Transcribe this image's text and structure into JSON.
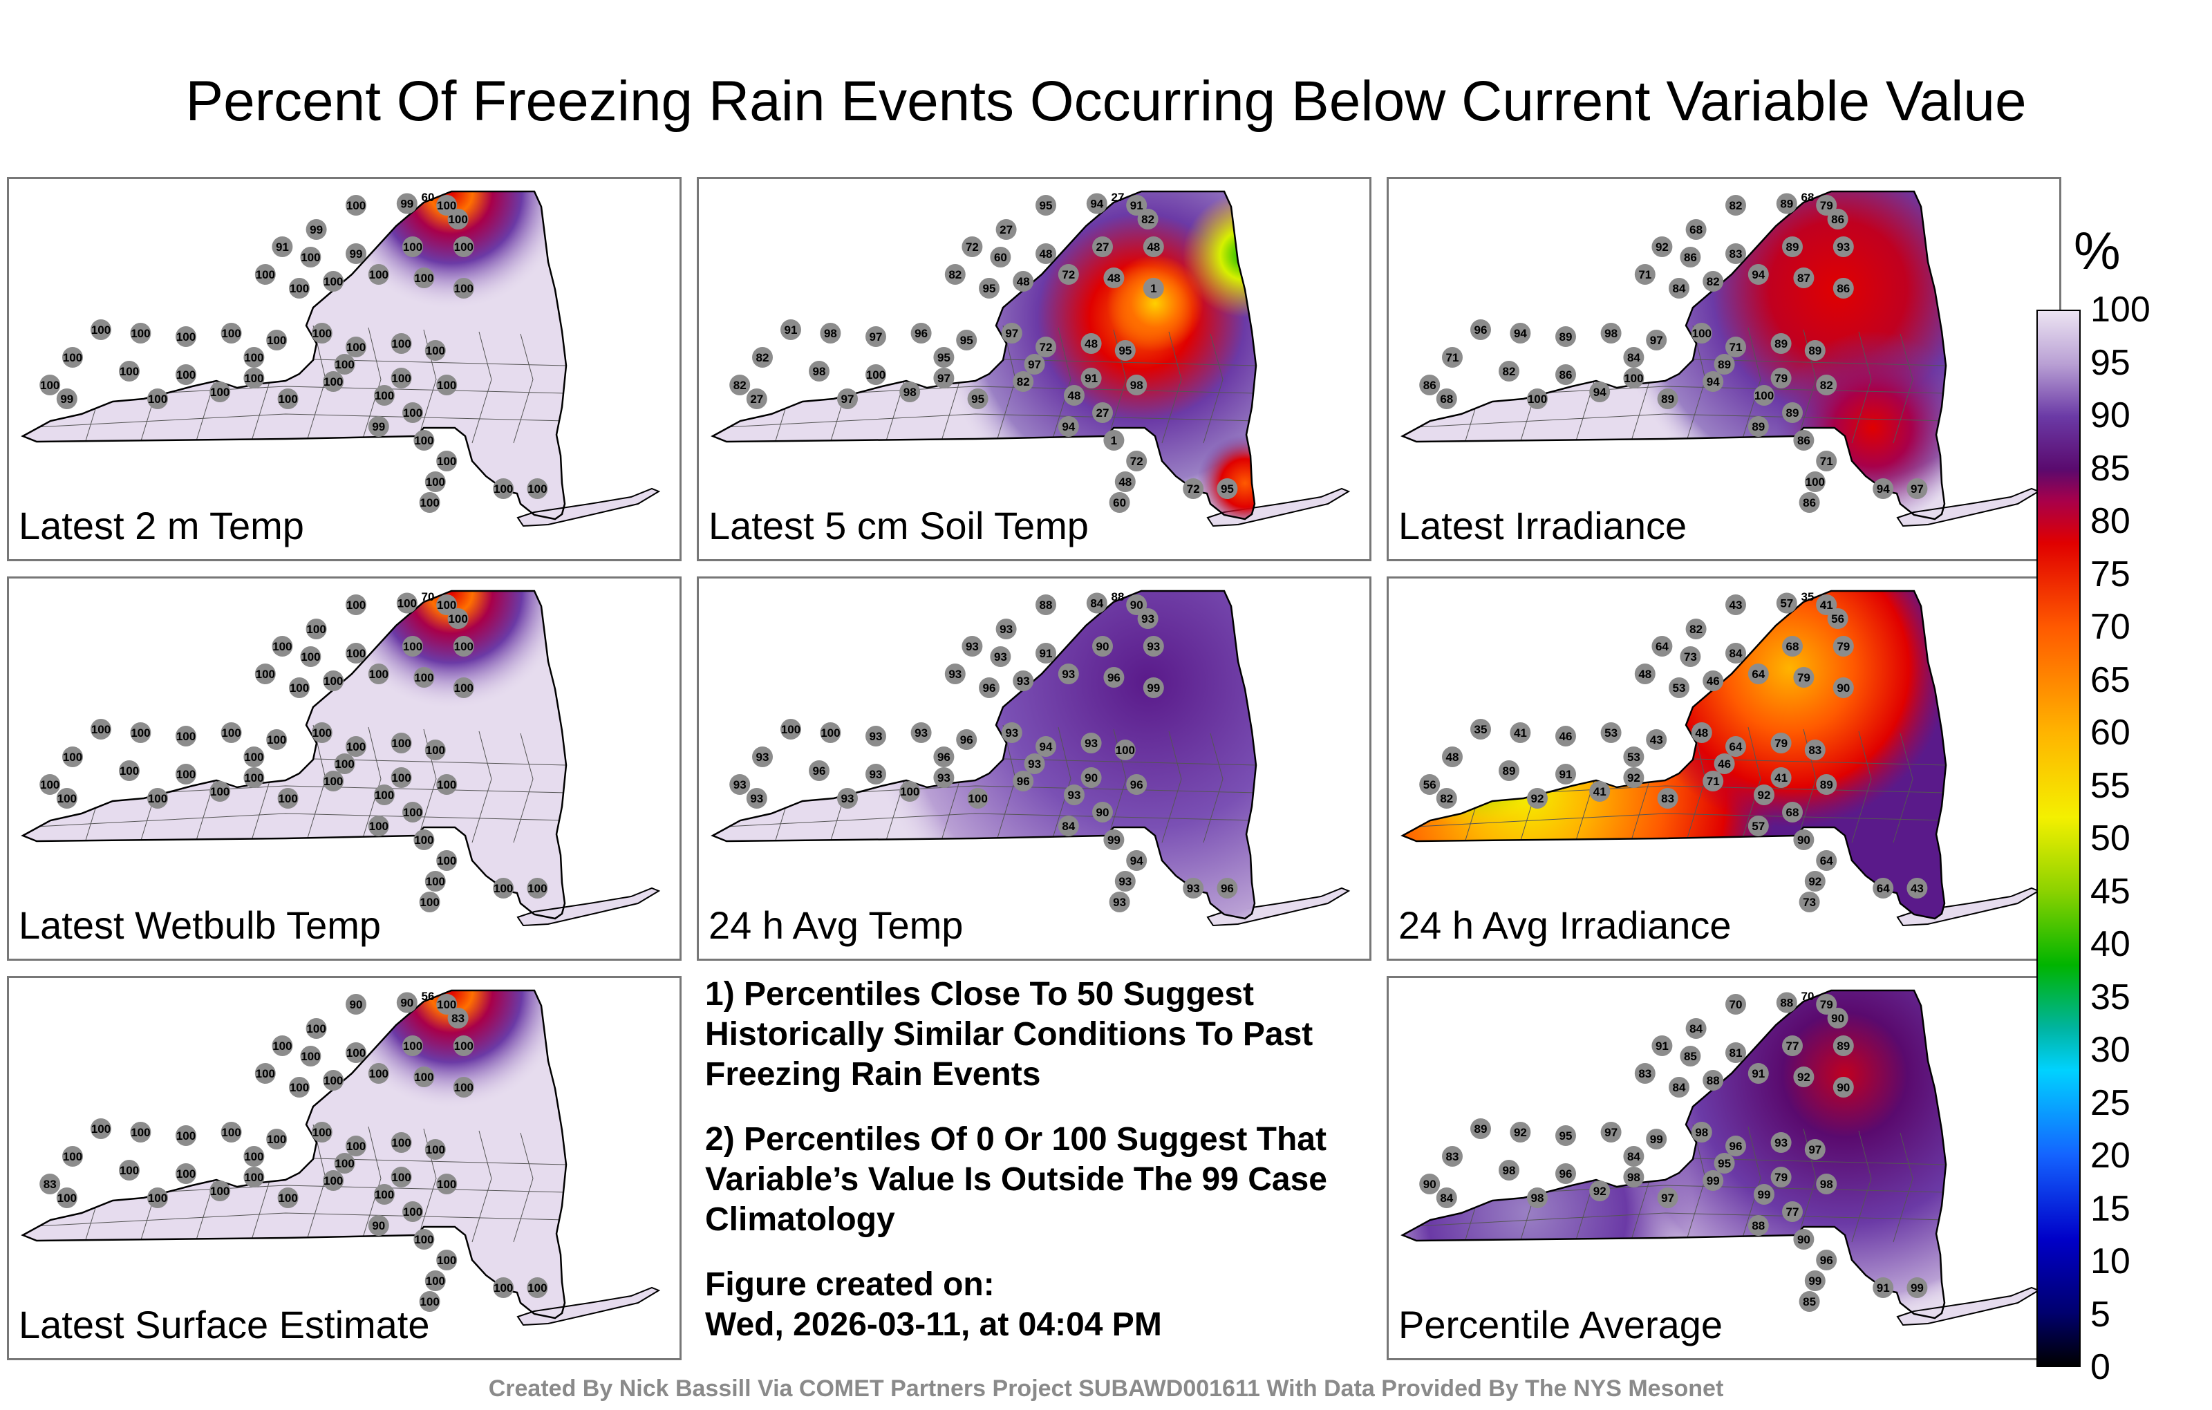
{
  "title": "Percent Of Freezing Rain Events Occurring Below Current Variable Value",
  "panels": [
    {
      "label": "Latest 2 m Temp",
      "pattern": "hot_north",
      "hot_value": "60",
      "station_values": [
        "100",
        "99",
        "100",
        "100",
        "99",
        "91",
        "100",
        "99",
        "100",
        "100",
        "100",
        "100",
        "100",
        "100",
        "100",
        "100",
        "100",
        "100",
        "100",
        "100",
        "100",
        "100",
        "100",
        "100",
        "100",
        "100",
        "100",
        "100",
        "100",
        "100"
      ]
    },
    {
      "label": "Latest 5 cm Soil Temp",
      "pattern": "adirondack_hot",
      "hot_value": "27",
      "station_values": [
        "95",
        "94",
        "91",
        "82",
        "27",
        "72",
        "60",
        "48",
        "27",
        "48",
        "82",
        "95",
        "48",
        "72",
        "48",
        "1",
        "91",
        "98",
        "97",
        "96",
        "95",
        "97",
        "72",
        "48",
        "95",
        "98",
        "100",
        "97",
        "82",
        "48"
      ]
    },
    {
      "label": "Latest Irradiance",
      "pattern": "north_red",
      "hot_value": "68",
      "station_values": [
        "82",
        "89",
        "79",
        "86",
        "68",
        "92",
        "86",
        "83",
        "89",
        "93",
        "71",
        "84",
        "82",
        "94",
        "87",
        "86",
        "96",
        "94",
        "89",
        "98",
        "97",
        "100",
        "71",
        "89",
        "89",
        "82",
        "86",
        "100",
        "94",
        "100"
      ]
    },
    {
      "label": "Latest Wetbulb Temp",
      "pattern": "hot_north",
      "hot_value": "70",
      "station_values": [
        "100",
        "100",
        "100",
        "100",
        "100",
        "100",
        "100",
        "100",
        "100",
        "100",
        "100",
        "100",
        "100",
        "100",
        "100",
        "100",
        "100",
        "100",
        "100",
        "100",
        "100",
        "100",
        "100",
        "100",
        "100",
        "100",
        "100",
        "100",
        "100",
        "100"
      ]
    },
    {
      "label": "24 h Avg Temp",
      "pattern": "purple_north",
      "hot_value": "88",
      "station_values": [
        "88",
        "84",
        "90",
        "93",
        "93",
        "93",
        "93",
        "91",
        "90",
        "93",
        "93",
        "96",
        "93",
        "93",
        "96",
        "99",
        "100",
        "100",
        "93",
        "93",
        "96",
        "93",
        "94",
        "93",
        "100",
        "96",
        "93",
        "93",
        "96",
        "93"
      ]
    },
    {
      "label": "24 h Avg Irradiance",
      "pattern": "west_hot",
      "hot_value": "35",
      "station_values": [
        "43",
        "57",
        "41",
        "56",
        "82",
        "64",
        "73",
        "84",
        "68",
        "79",
        "48",
        "53",
        "46",
        "64",
        "79",
        "90",
        "35",
        "41",
        "46",
        "53",
        "43",
        "48",
        "64",
        "79",
        "83",
        "89",
        "91",
        "92",
        "71",
        "92"
      ]
    },
    {
      "label": "Latest Surface Estimate",
      "pattern": "hot_north",
      "hot_value": "56",
      "station_values": [
        "90",
        "90",
        "100",
        "83",
        "100",
        "100",
        "100",
        "100",
        "100",
        "100",
        "100",
        "100",
        "100",
        "100",
        "100",
        "100",
        "100",
        "100",
        "100",
        "100",
        "100",
        "100",
        "100",
        "100",
        "100",
        "100",
        "100",
        "100",
        "100",
        "100"
      ]
    },
    {
      "label": "Percentile Average",
      "pattern": "avg",
      "hot_value": "70",
      "station_values": [
        "70",
        "88",
        "79",
        "90",
        "84",
        "91",
        "85",
        "81",
        "77",
        "89",
        "83",
        "84",
        "88",
        "91",
        "92",
        "90",
        "89",
        "92",
        "95",
        "97",
        "99",
        "98",
        "96",
        "93",
        "97",
        "98",
        "96",
        "98",
        "99",
        "99"
      ]
    }
  ],
  "notes": [
    "1) Percentiles Close To 50 Suggest Historically Similar Conditions To Past Freezing Rain Events",
    "2) Percentiles Of 0 Or 100 Suggest That Variable’s Value Is Outside The 99 Case Climatology"
  ],
  "created_label": "Figure created on:",
  "created_date": "Wed, 2026-03-11, at 04:04 PM",
  "footer": "Created By Nick Bassill Via COMET Partners Project SUBAWD001611 With Data Provided By The NYS Mesonet",
  "chart_data": {
    "type": "heatmap",
    "title": "Percent Of Freezing Rain Events Occurring Below Current Variable Value",
    "colorbar": {
      "unit": "%",
      "ticks": [
        "100",
        "95",
        "90",
        "85",
        "80",
        "75",
        "70",
        "65",
        "60",
        "55",
        "50",
        "45",
        "40",
        "35",
        "30",
        "25",
        "20",
        "15",
        "10",
        "5",
        "0"
      ],
      "range": [
        0,
        100
      ]
    },
    "panels": [
      "Latest 2 m Temp",
      "Latest 5 cm Soil Temp",
      "Latest Irradiance",
      "Latest Wetbulb Temp",
      "24 h Avg Temp",
      "24 h Avg Irradiance",
      "Latest Surface Estimate",
      "Percentile Average"
    ]
  }
}
